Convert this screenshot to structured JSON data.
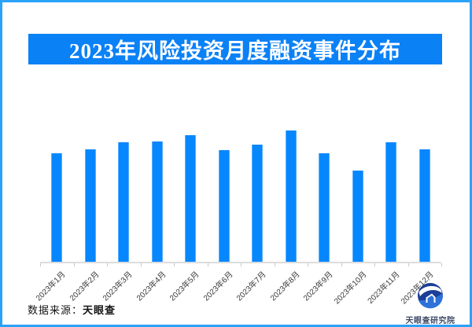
{
  "page": {
    "background": "#ffffff",
    "border_color": "#2BA2F9"
  },
  "title": {
    "text": "2023年风险投资月度融资事件分布",
    "banner_color": "#0B81F6",
    "text_color": "#ffffff"
  },
  "chart_data": {
    "type": "bar",
    "title": "2023年风险投资月度融资事件分布",
    "categories": [
      "2023年1月",
      "2023年2月",
      "2023年3月",
      "2023年4月",
      "2023年5月",
      "2023年6月",
      "2023年7月",
      "2023年8月",
      "2023年9月",
      "2023年10月",
      "2023年11月",
      "2023年12月"
    ],
    "values": [
      138,
      143,
      152,
      153,
      161,
      142,
      149,
      167,
      138,
      116,
      152,
      143
    ],
    "value_note": "y-axis has no numeric labels in the image; values are relative bar heights in pixels (tallest = 2023年8月, shortest = 2023年10月)",
    "xlabel": "",
    "ylabel": "",
    "bar_color": "#0787FE",
    "axis_color": "#DCDCDC",
    "tick_label_color": "#3A3A3A",
    "tick_label_rotation_deg": 45,
    "grid": false,
    "legend": "none"
  },
  "source": {
    "prefix": "数据来源：",
    "name": "天眼查"
  },
  "brand": {
    "logo_name": "tianyancha-eye-logo",
    "text": "天眼查研究院",
    "logo_dark_blue": "#1C3E96",
    "logo_mid_blue": "#2E72D8",
    "text_color": "#3E4A67"
  }
}
